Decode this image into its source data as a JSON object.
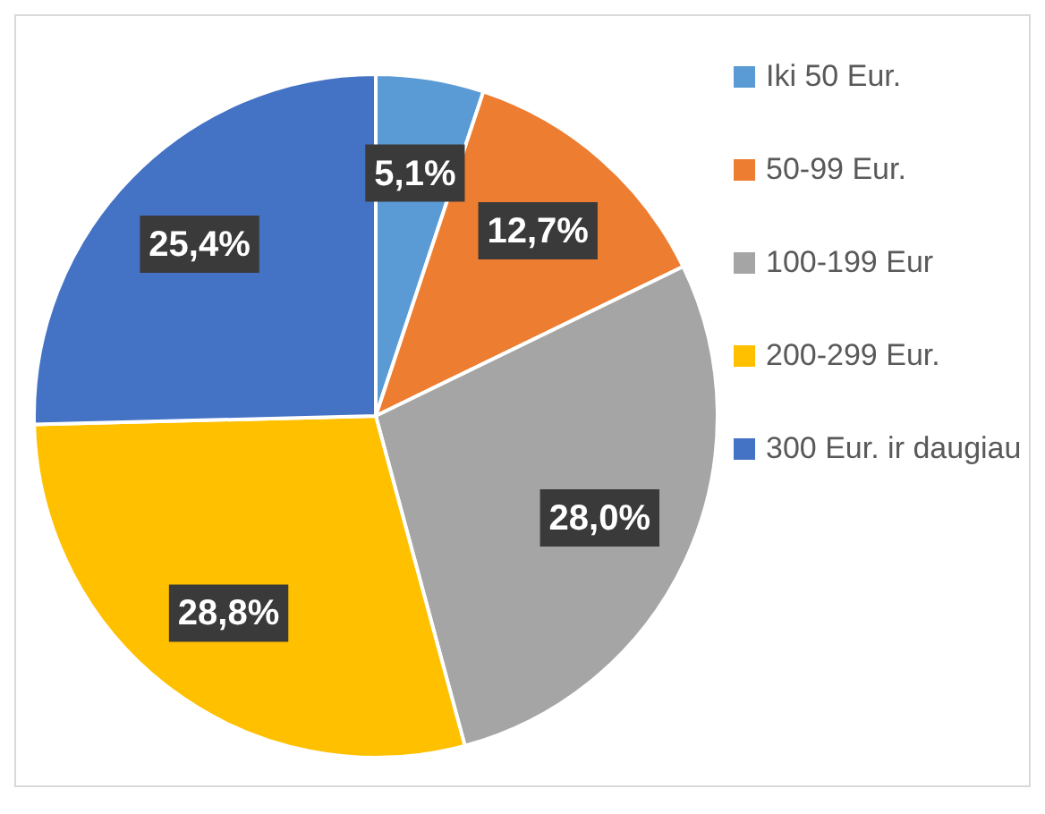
{
  "chart_data": {
    "type": "pie",
    "categories": [
      "Iki 50 Eur.",
      "50-99 Eur.",
      "100-199 Eur",
      "200-299 Eur.",
      "300 Eur. ir daugiau"
    ],
    "values": [
      5.1,
      12.7,
      28.0,
      28.8,
      25.4
    ],
    "colors": [
      "#5b9bd5",
      "#ed7d31",
      "#a5a5a5",
      "#ffc000",
      "#4472c4"
    ],
    "value_labels": [
      "5,1%",
      "12,7%",
      "28,0%",
      "28,8%",
      "25,4%"
    ],
    "legend": "right"
  }
}
